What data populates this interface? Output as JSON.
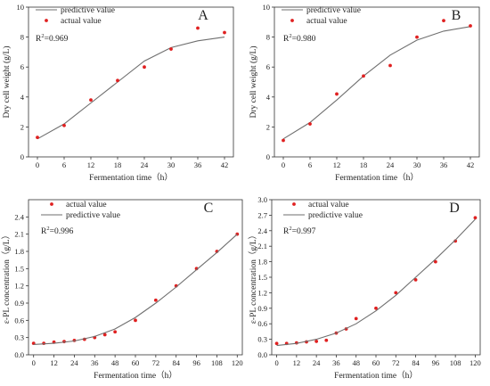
{
  "chart_data": [
    {
      "type": "line",
      "panel_label": "A",
      "r2_prefix": "R",
      "r2_sup": "2",
      "r2_value": "=0.969",
      "xlabel": "Fermentation time（h）",
      "ylabel": "Dry cell weight (g/L)",
      "xlim": [
        -2,
        44
      ],
      "ylim": [
        0,
        10
      ],
      "x_ticks": [
        0,
        6,
        12,
        18,
        24,
        30,
        36,
        42
      ],
      "y_ticks": [
        0,
        2,
        4,
        6,
        8,
        10
      ],
      "legend_order": [
        "line",
        "scatter"
      ],
      "series": [
        {
          "name": "predictive value",
          "kind": "line",
          "x": [
            0,
            6,
            12,
            18,
            24,
            30,
            36,
            42
          ],
          "y": [
            1.2,
            2.2,
            3.6,
            5.0,
            6.4,
            7.3,
            7.75,
            8.0
          ]
        },
        {
          "name": "actual value",
          "kind": "scatter",
          "x": [
            0,
            6,
            12,
            18,
            24,
            30,
            36,
            42
          ],
          "y": [
            1.3,
            2.1,
            3.8,
            5.1,
            6.0,
            7.2,
            8.6,
            8.3
          ]
        }
      ]
    },
    {
      "type": "line",
      "panel_label": "B",
      "r2_prefix": "R",
      "r2_sup": "2",
      "r2_value": "=0.980",
      "xlabel": "Fermentation time（h）",
      "ylabel": "Dry cell weight (g/L)",
      "xlim": [
        -2,
        44
      ],
      "ylim": [
        0,
        10
      ],
      "x_ticks": [
        0,
        6,
        12,
        18,
        24,
        30,
        36,
        42
      ],
      "y_ticks": [
        0,
        2,
        4,
        6,
        8,
        10
      ],
      "legend_order": [
        "line",
        "scatter"
      ],
      "series": [
        {
          "name": "predictive value",
          "kind": "line",
          "x": [
            0,
            6,
            12,
            18,
            24,
            30,
            36,
            42
          ],
          "y": [
            1.2,
            2.3,
            3.8,
            5.4,
            6.8,
            7.8,
            8.4,
            8.7
          ]
        },
        {
          "name": "actual value",
          "kind": "scatter",
          "x": [
            0,
            6,
            12,
            18,
            24,
            30,
            36,
            42
          ],
          "y": [
            1.1,
            2.2,
            4.2,
            5.4,
            6.1,
            8.0,
            9.1,
            8.75
          ]
        }
      ]
    },
    {
      "type": "line",
      "panel_label": "C",
      "r2_prefix": "R",
      "r2_sup": "2",
      "r2_value": "=0.996",
      "xlabel": "Fermentation time（h）",
      "ylabel": "ε-PL concentration（g/L）",
      "xlim": [
        -3,
        123
      ],
      "ylim": [
        0.0,
        2.7
      ],
      "x_ticks": [
        0,
        12,
        24,
        36,
        48,
        60,
        72,
        84,
        96,
        108,
        120
      ],
      "y_ticks": [
        0.0,
        0.3,
        0.6,
        0.9,
        1.2,
        1.5,
        1.8,
        2.1,
        2.4
      ],
      "legend_order": [
        "scatter",
        "line"
      ],
      "series": [
        {
          "name": "actual value",
          "kind": "scatter",
          "x": [
            0,
            6,
            12,
            18,
            24,
            30,
            36,
            42,
            48,
            60,
            72,
            84,
            96,
            108,
            120
          ],
          "y": [
            0.2,
            0.2,
            0.22,
            0.23,
            0.25,
            0.27,
            0.3,
            0.35,
            0.4,
            0.6,
            0.95,
            1.2,
            1.5,
            1.8,
            2.1
          ]
        },
        {
          "name": "predictive value",
          "kind": "line",
          "x": [
            0,
            12,
            24,
            36,
            48,
            60,
            72,
            84,
            96,
            108,
            120
          ],
          "y": [
            0.18,
            0.2,
            0.24,
            0.32,
            0.45,
            0.65,
            0.9,
            1.18,
            1.48,
            1.78,
            2.1
          ]
        }
      ]
    },
    {
      "type": "line",
      "panel_label": "D",
      "r2_prefix": "R",
      "r2_sup": "2",
      "r2_value": "=0.997",
      "xlabel": "Fermentation time（h）",
      "ylabel": "ε-PL concentration（g/L）",
      "xlim": [
        -3,
        123
      ],
      "ylim": [
        0.0,
        3.0
      ],
      "x_ticks": [
        0,
        12,
        24,
        36,
        48,
        60,
        72,
        84,
        96,
        108,
        120
      ],
      "y_ticks": [
        0.0,
        0.3,
        0.6,
        0.9,
        1.2,
        1.5,
        1.8,
        2.1,
        2.4,
        2.7,
        3.0
      ],
      "legend_order": [
        "scatter",
        "line"
      ],
      "series": [
        {
          "name": "actual value",
          "kind": "scatter",
          "x": [
            0,
            6,
            12,
            18,
            24,
            30,
            36,
            42,
            48,
            60,
            72,
            84,
            96,
            108,
            120
          ],
          "y": [
            0.22,
            0.22,
            0.23,
            0.25,
            0.26,
            0.28,
            0.42,
            0.5,
            0.7,
            0.9,
            1.2,
            1.45,
            1.8,
            2.2,
            2.65
          ]
        },
        {
          "name": "predictive value",
          "kind": "line",
          "x": [
            0,
            12,
            24,
            36,
            48,
            60,
            72,
            84,
            96,
            108,
            120
          ],
          "y": [
            0.18,
            0.22,
            0.3,
            0.42,
            0.6,
            0.85,
            1.15,
            1.5,
            1.85,
            2.22,
            2.62
          ]
        }
      ]
    }
  ]
}
